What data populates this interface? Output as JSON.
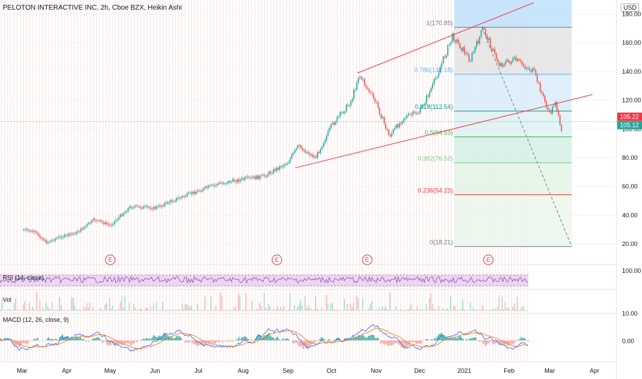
{
  "header": {
    "title": "PELOTON INTERACTIVE INC, 2h, Cboe BZX, Heikin Ashi",
    "currency": "USD"
  },
  "indicators": {
    "rsi_label": "RSI (14, close)",
    "vol_label": "Vol",
    "macd_label": "MACD (12, 26, close, 9)"
  },
  "colors": {
    "up": "#26a69a",
    "down": "#ef5350",
    "trendline": "#f23645",
    "fib_zero": "#787b86",
    "fib_0236": "#f23645",
    "fib_0382": "#81c784",
    "fib_05": "#4caf50",
    "fib_0618": "#089981",
    "fib_0786": "#64b5f6",
    "fib_1": "#787b86",
    "rsi_band": "#e1bee7",
    "macd_line": "#2962ff",
    "signal_line": "#ff6d00"
  },
  "chart_data": [
    {
      "type": "candlestick",
      "title": "PELOTON INTERACTIVE INC, 2h, Cboe BZX, Heikin Ashi",
      "x_ticks": [
        "Mar",
        "Apr",
        "May",
        "Jun",
        "Jul",
        "Aug",
        "Sep",
        "Oct",
        "Nov",
        "Dec",
        "2021",
        "Feb",
        "Mar",
        "Apr"
      ],
      "y_ticks": [
        "20.00",
        "40.00",
        "60.00",
        "80.00",
        "100.00",
        "120.00",
        "140.00",
        "160.00",
        "180.00"
      ],
      "ylim": [
        10,
        188
      ],
      "price_path": [
        {
          "x": "2020-03-02",
          "y": 30
        },
        {
          "x": "2020-03-10",
          "y": 28
        },
        {
          "x": "2020-03-18",
          "y": 21
        },
        {
          "x": "2020-03-25",
          "y": 24
        },
        {
          "x": "2020-04-08",
          "y": 28
        },
        {
          "x": "2020-04-20",
          "y": 37
        },
        {
          "x": "2020-05-01",
          "y": 33
        },
        {
          "x": "2020-05-15",
          "y": 46
        },
        {
          "x": "2020-06-01",
          "y": 45
        },
        {
          "x": "2020-06-15",
          "y": 51
        },
        {
          "x": "2020-07-01",
          "y": 57
        },
        {
          "x": "2020-07-15",
          "y": 62
        },
        {
          "x": "2020-08-01",
          "y": 65
        },
        {
          "x": "2020-08-15",
          "y": 67
        },
        {
          "x": "2020-09-01",
          "y": 77
        },
        {
          "x": "2020-09-08",
          "y": 88
        },
        {
          "x": "2020-09-20",
          "y": 80
        },
        {
          "x": "2020-10-01",
          "y": 102
        },
        {
          "x": "2020-10-15",
          "y": 120
        },
        {
          "x": "2020-10-20",
          "y": 138
        },
        {
          "x": "2020-11-01",
          "y": 118
        },
        {
          "x": "2020-11-10",
          "y": 95
        },
        {
          "x": "2020-11-20",
          "y": 108
        },
        {
          "x": "2020-12-01",
          "y": 112
        },
        {
          "x": "2020-12-10",
          "y": 130
        },
        {
          "x": "2020-12-24",
          "y": 165
        },
        {
          "x": "2021-01-05",
          "y": 148
        },
        {
          "x": "2021-01-14",
          "y": 170
        },
        {
          "x": "2021-01-25",
          "y": 145
        },
        {
          "x": "2021-02-05",
          "y": 148
        },
        {
          "x": "2021-02-18",
          "y": 140
        },
        {
          "x": "2021-03-01",
          "y": 110
        },
        {
          "x": "2021-03-05",
          "y": 120
        },
        {
          "x": "2021-03-09",
          "y": 96
        },
        {
          "x": "2021-03-10",
          "y": 105.12
        }
      ],
      "last_price": "105.12",
      "alert_price": "105.22",
      "fibonacci": [
        {
          "ratio": "0",
          "label": "0(18.21)",
          "price": 18.21
        },
        {
          "ratio": "0.236",
          "label": "0.236(54.23)",
          "price": 54.23
        },
        {
          "ratio": "0.382",
          "label": "0.382(76.52)",
          "price": 76.52
        },
        {
          "ratio": "0.5",
          "label": "0.5(94.53)",
          "price": 94.53
        },
        {
          "ratio": "0.618",
          "label": "0.618(112.54)",
          "price": 112.54
        },
        {
          "ratio": "0.786",
          "label": "0.786(138.18)",
          "price": 138.18
        },
        {
          "ratio": "1",
          "label": "1(170.85)",
          "price": 170.85
        }
      ],
      "earnings_markers": [
        "E",
        "E",
        "E",
        "E"
      ],
      "grid": true
    },
    {
      "type": "line",
      "title": "RSI (14, close)",
      "y_ticks": [
        "100.00"
      ]
    },
    {
      "type": "bar",
      "title": "Vol",
      "y_ticks": [
        "10.00"
      ]
    },
    {
      "type": "line",
      "title": "MACD (12, 26, close, 9)",
      "y_ticks": [
        "0.00"
      ],
      "series": [
        {
          "name": "MACD"
        },
        {
          "name": "Signal"
        }
      ]
    }
  ]
}
